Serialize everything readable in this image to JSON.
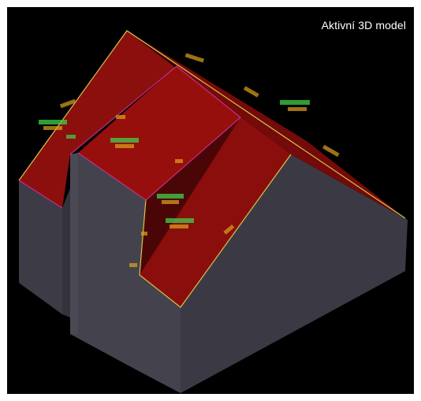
{
  "viewport": {
    "title": "Aktivní 3D model",
    "background": "#000000"
  },
  "colors": {
    "roof": "#8b0f0d",
    "roof_dark": "#5c0707",
    "wall": "#3b3a44",
    "wall_light": "#45444e",
    "wall_dark": "#2d2c35",
    "edge_yellow": "#d6c44a",
    "edge_magenta": "#c0308a",
    "label_green": "#3fd14a",
    "label_orange": "#e0a21e"
  }
}
